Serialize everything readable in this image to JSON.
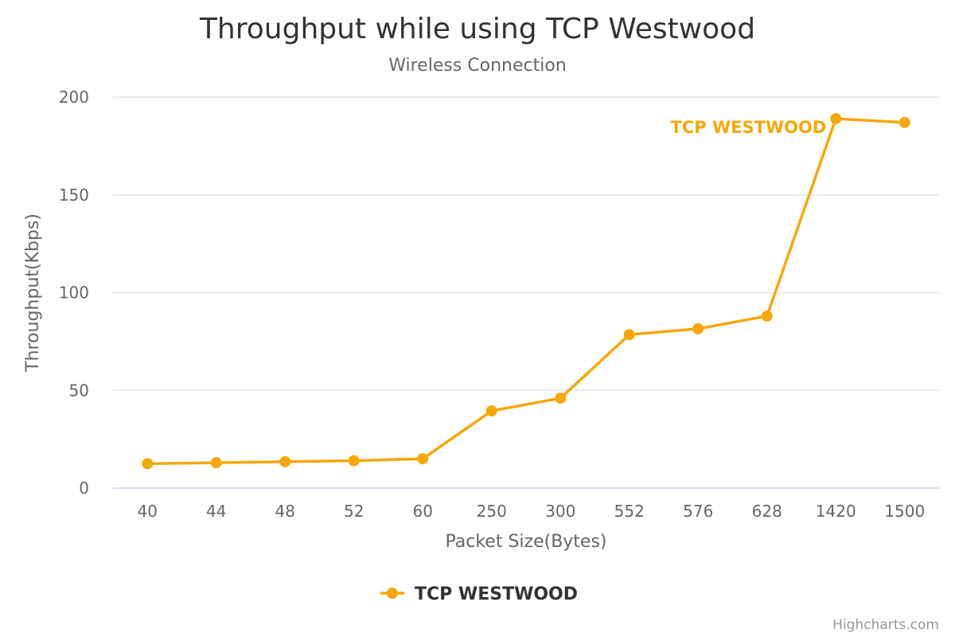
{
  "chart_data": {
    "type": "line",
    "title": "Throughput while using TCP Westwood",
    "subtitle": "Wireless Connection",
    "xlabel": "Packet Size(Bytes)",
    "ylabel": "Throughput(Kbps)",
    "categories": [
      "40",
      "44",
      "48",
      "52",
      "60",
      "250",
      "300",
      "552",
      "576",
      "628",
      "1420",
      "1500"
    ],
    "series": [
      {
        "name": "TCP WESTWOOD",
        "color": "#f7a70a",
        "values": [
          12.5,
          13,
          13.5,
          14,
          15,
          39.5,
          46,
          78.5,
          81.5,
          88,
          189,
          187
        ]
      }
    ],
    "ylim": [
      0,
      200
    ],
    "yticks": [
      0,
      50,
      100,
      150,
      200
    ],
    "grid": true,
    "legend": "bottom-center",
    "series_label": "TCP WESTWOOD",
    "credits": "Highcharts.com"
  }
}
